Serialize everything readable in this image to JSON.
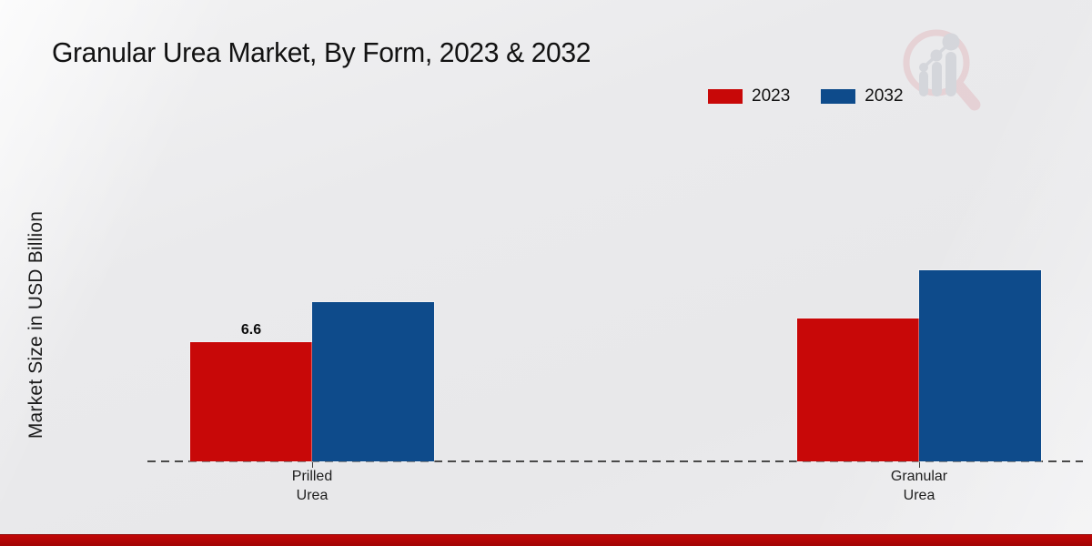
{
  "page": {
    "title": "Granular Urea Market, By Form, 2023 & 2032",
    "y_axis_title": "Market Size in USD Billion"
  },
  "legend": {
    "items": [
      {
        "label": "2023",
        "color": "#c80808"
      },
      {
        "label": "2032",
        "color": "#0e4b8b"
      }
    ]
  },
  "colors": {
    "series_2023": "#c80808",
    "series_2032": "#0e4b8b",
    "footer_bar": "#b40606",
    "baseline": "#4a4a4a"
  },
  "watermark_icon": "magnifier-bar-chart-logo",
  "chart_data": {
    "type": "bar",
    "title": "Granular Urea Market, By Form, 2023 & 2032",
    "ylabel": "Market Size in USD Billion",
    "xlabel": "",
    "value_unit": "USD Billion",
    "categories": [
      "Prilled\nUrea",
      "Granular\nUrea"
    ],
    "series": [
      {
        "name": "2023",
        "color": "#c80808",
        "values": [
          6.6,
          7.9
        ],
        "labels": [
          "6.6",
          ""
        ]
      },
      {
        "name": "2032",
        "color": "#0e4b8b",
        "values": [
          8.8,
          10.6
        ],
        "labels": [
          "",
          ""
        ]
      }
    ],
    "ylim": [
      0,
      12
    ],
    "grid": false,
    "y_axis_ticks_visible": false,
    "baseline_style": "dashed",
    "legend_position": "top-right",
    "note": "Only the 6.6 value is labeled on-chart; other values estimated from bar heights"
  }
}
